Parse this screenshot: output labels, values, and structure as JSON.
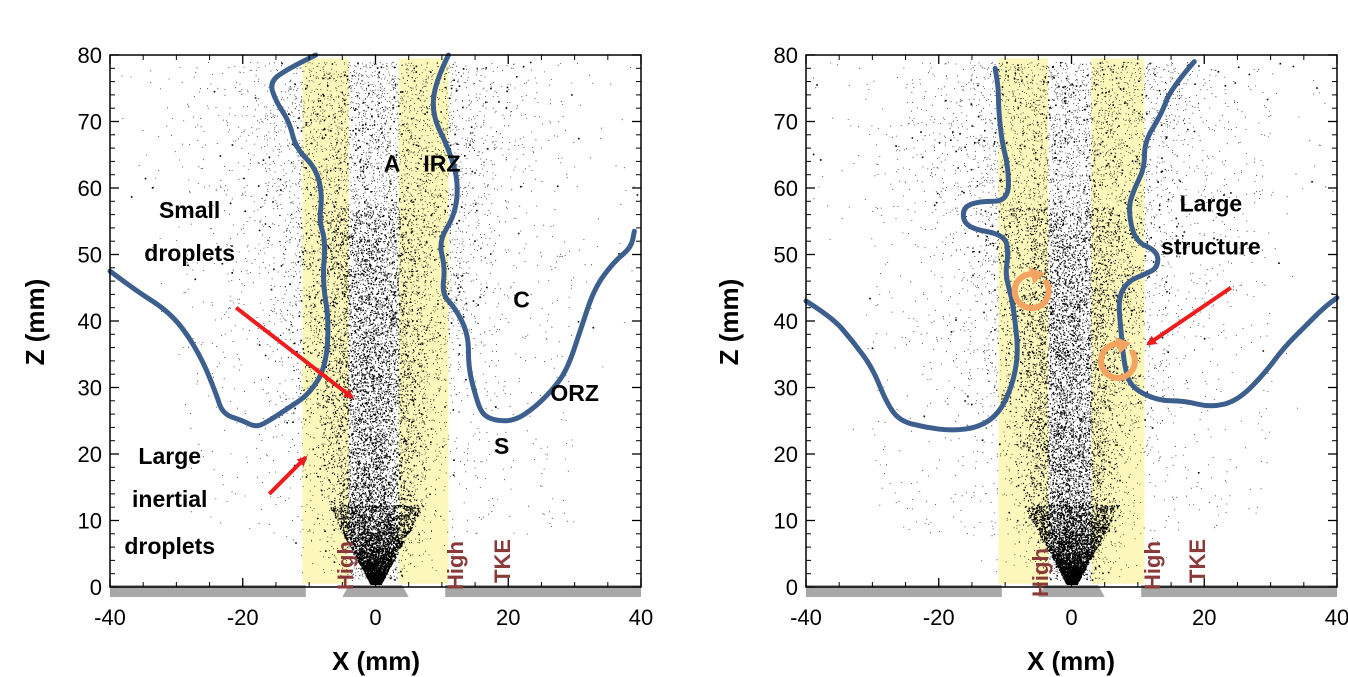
{
  "chart_data": [
    {
      "type": "scatter",
      "xlabel": "X (mm)",
      "ylabel": "Z (mm)",
      "xlim": [
        -40,
        40
      ],
      "ylim": [
        0,
        80
      ],
      "xticks": [
        "-40",
        "-20",
        "0",
        "20",
        "40"
      ],
      "yticks": [
        "0",
        "10",
        "20",
        "30",
        "40",
        "50",
        "60",
        "70",
        "80"
      ],
      "high_tke_bands": [
        [
          -11,
          -4
        ],
        [
          3.5,
          11
        ]
      ],
      "high_tke_labels": [
        "High",
        "High",
        "TKE"
      ],
      "annotations": [
        {
          "text": "A",
          "x": 2.5,
          "y": 62.5
        },
        {
          "text": "IRZ",
          "x": 10,
          "y": 62.5
        },
        {
          "text": "Small",
          "x": -28,
          "y": 55.5
        },
        {
          "text": "droplets",
          "x": -28,
          "y": 49
        },
        {
          "text": "C",
          "x": 22,
          "y": 42
        },
        {
          "text": "ORZ",
          "x": 30,
          "y": 28
        },
        {
          "text": "S",
          "x": 19,
          "y": 20
        },
        {
          "text": "Large",
          "x": -31,
          "y": 18.5
        },
        {
          "text": "inertial",
          "x": -31,
          "y": 12
        },
        {
          "text": "droplets",
          "x": -31,
          "y": 5
        }
      ],
      "arrows": [
        {
          "from": [
            -21,
            42
          ],
          "to": [
            -3.5,
            28.5
          ]
        },
        {
          "from": [
            -16,
            14
          ],
          "to": [
            -10.5,
            19.5
          ]
        }
      ],
      "boundary_left": [
        [
          -40,
          47.5
        ],
        [
          -36,
          44.5
        ],
        [
          -32,
          42
        ],
        [
          -29,
          39
        ],
        [
          -26,
          34
        ],
        [
          -24,
          29
        ],
        [
          -23,
          26
        ],
        [
          -20,
          25
        ],
        [
          -18,
          24
        ],
        [
          -16,
          25
        ],
        [
          -13,
          27
        ],
        [
          -10,
          29
        ],
        [
          -7.5,
          33
        ],
        [
          -7,
          40
        ],
        [
          -8,
          46
        ],
        [
          -7.5,
          52
        ],
        [
          -8.5,
          55
        ],
        [
          -8,
          59
        ],
        [
          -9,
          63
        ],
        [
          -12,
          66
        ],
        [
          -13,
          70
        ],
        [
          -15,
          73
        ],
        [
          -16,
          76
        ],
        [
          -13,
          78
        ],
        [
          -9,
          80
        ]
      ],
      "boundary_right": [
        [
          11,
          80
        ],
        [
          9,
          76
        ],
        [
          8.5,
          71
        ],
        [
          11,
          66
        ],
        [
          12.5,
          61
        ],
        [
          12,
          56
        ],
        [
          9.5,
          52
        ],
        [
          10.5,
          48
        ],
        [
          10,
          44
        ],
        [
          12,
          42
        ],
        [
          14,
          38
        ],
        [
          14,
          33
        ],
        [
          15,
          29
        ],
        [
          16,
          26
        ],
        [
          18,
          25
        ],
        [
          21,
          25
        ],
        [
          24,
          27
        ],
        [
          27,
          30
        ],
        [
          29,
          33
        ],
        [
          31,
          39
        ],
        [
          33,
          45
        ],
        [
          36,
          49
        ],
        [
          38.5,
          51
        ],
        [
          39,
          53.5
        ]
      ],
      "droplet_counts": {
        "fine": 9000,
        "dense_core": 3500
      }
    },
    {
      "type": "scatter",
      "xlabel": "X (mm)",
      "ylabel": "Z (mm)",
      "xlim": [
        -40,
        40
      ],
      "ylim": [
        0,
        80
      ],
      "xticks": [
        "-40",
        "-20",
        "0",
        "20",
        "40"
      ],
      "yticks": [
        "0",
        "10",
        "20",
        "30",
        "40",
        "50",
        "60",
        "70",
        "80"
      ],
      "high_tke_bands": [
        [
          -11,
          -3.5
        ],
        [
          3,
          11
        ]
      ],
      "high_tke_labels": [
        "High",
        "High",
        "TKE"
      ],
      "annotations": [
        {
          "text": "Large",
          "x": 21,
          "y": 56.5
        },
        {
          "text": "structure",
          "x": 21,
          "y": 50
        }
      ],
      "arrows": [
        {
          "from": [
            24,
            45
          ],
          "to": [
            11.5,
            36.5
          ]
        }
      ],
      "vortices": [
        {
          "x": -6,
          "y": 44.5
        },
        {
          "x": 7,
          "y": 34
        }
      ],
      "boundary_left": [
        [
          -40,
          43
        ],
        [
          -36,
          40.5
        ],
        [
          -33,
          37
        ],
        [
          -30,
          33
        ],
        [
          -28,
          28
        ],
        [
          -26,
          25
        ],
        [
          -22,
          24
        ],
        [
          -18,
          23.5
        ],
        [
          -14,
          24
        ],
        [
          -11,
          26
        ],
        [
          -9,
          30
        ],
        [
          -8,
          35
        ],
        [
          -8.5,
          40
        ],
        [
          -9,
          43.5
        ],
        [
          -10,
          47
        ],
        [
          -9.5,
          50
        ],
        [
          -10,
          53
        ],
        [
          -16,
          54
        ],
        [
          -16.5,
          57
        ],
        [
          -14,
          58
        ],
        [
          -9.5,
          58
        ],
        [
          -9.5,
          63
        ],
        [
          -10.5,
          67
        ],
        [
          -11,
          72
        ],
        [
          -11,
          75
        ],
        [
          -11.5,
          78
        ]
      ],
      "boundary_right": [
        [
          18.5,
          79
        ],
        [
          15,
          75
        ],
        [
          13.5,
          71
        ],
        [
          11,
          67
        ],
        [
          11,
          63
        ],
        [
          9.5,
          60
        ],
        [
          8.5,
          57
        ],
        [
          9.5,
          52
        ],
        [
          13,
          50.5
        ],
        [
          13,
          48
        ],
        [
          11,
          47
        ],
        [
          8.5,
          46
        ],
        [
          7,
          43.5
        ],
        [
          7.5,
          38
        ],
        [
          8,
          33
        ],
        [
          9,
          30
        ],
        [
          13,
          28
        ],
        [
          17,
          28
        ],
        [
          21,
          27
        ],
        [
          25,
          28
        ],
        [
          29,
          32
        ],
        [
          32,
          36
        ],
        [
          35,
          39
        ],
        [
          38,
          42
        ],
        [
          40,
          43.5
        ]
      ],
      "droplet_counts": {
        "fine": 9000,
        "dense_core": 3500
      }
    }
  ],
  "panels": [
    {
      "axis": {
        "xlabel": "X (mm)",
        "ylabel": "Z (mm)"
      },
      "tke": {
        "high_a": "High",
        "high_b": "High",
        "tke": "TKE"
      }
    },
    {
      "axis": {
        "xlabel": "X (mm)",
        "ylabel": "Z (mm)"
      },
      "tke": {
        "high_a": "High",
        "high_b": "High",
        "tke": "TKE"
      }
    }
  ],
  "colors": {
    "boundary": "#3c5f8e",
    "band": "#fcf7b0",
    "arrow": "#ee1c1c",
    "vortex": "#f4a460",
    "tke_text": "#8b3a3a",
    "nozzle": "#a8a8a8"
  }
}
